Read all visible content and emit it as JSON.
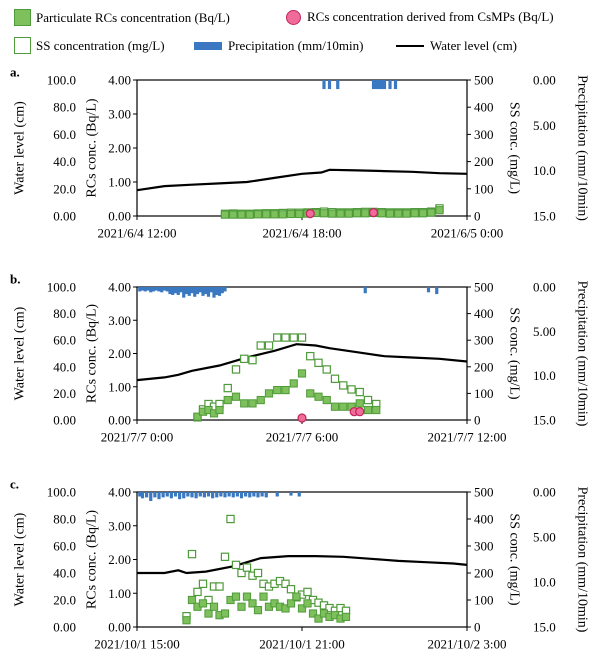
{
  "legend": {
    "particulate": "Particulate RCs concentration (Bq/L)",
    "csmp": "RCs concentration derived from CsMPs (Bq/L)",
    "ss": "SS concentration (mg/L)",
    "precip": "Precipitation (mm/10min)",
    "water": "Water level (cm)"
  },
  "colors": {
    "green_fill": "#7dc05c",
    "green_edge": "#4f9a3a",
    "pink_fill": "#ef6b9a",
    "pink_edge": "#c0245a",
    "blue": "#3a78c2",
    "line": "#000000"
  },
  "chart_data": [
    {
      "type": "scatter",
      "panel": "a.",
      "axis_labels": {
        "water": "Water level (cm)",
        "rcs": "RCs conc. (Bq/L)",
        "ss": "SS conc. (mg/L)",
        "precip": "Precipitation (mm/10min)"
      },
      "water_ticks": [
        "100.0",
        "80.0",
        "60.0",
        "40.0",
        "20.0",
        "0.00"
      ],
      "rcs_ticks": [
        "4.00",
        "3.00",
        "2.00",
        "1.00",
        "0.00"
      ],
      "ss_ticks": [
        "500",
        "400",
        "300",
        "200",
        "100",
        "0"
      ],
      "precip_ticks": [
        "0.00",
        "5.00",
        "10.0",
        "15.0"
      ],
      "x_ticks": [
        {
          "h": 0,
          "label": "2021/6/4 12:00"
        },
        {
          "h": 6,
          "label": "2021/6/4 18:00"
        },
        {
          "h": 12,
          "label": "2021/6/5 0:00"
        }
      ],
      "xlim": [
        0,
        12
      ],
      "water_level": [
        [
          0,
          19
        ],
        [
          1,
          22
        ],
        [
          2,
          23
        ],
        [
          3,
          24
        ],
        [
          4,
          25
        ],
        [
          5,
          28
        ],
        [
          6,
          31
        ],
        [
          6.7,
          32
        ],
        [
          7,
          34
        ],
        [
          8,
          33.5
        ],
        [
          9,
          33
        ],
        [
          10,
          32.5
        ],
        [
          11,
          31.5
        ],
        [
          12,
          31
        ]
      ],
      "particulate": [
        [
          3.2,
          0.04
        ],
        [
          3.5,
          0.04
        ],
        [
          3.8,
          0.04
        ],
        [
          4.1,
          0.04
        ],
        [
          4.4,
          0.05
        ],
        [
          4.7,
          0.05
        ],
        [
          5.0,
          0.05
        ],
        [
          5.3,
          0.05
        ],
        [
          5.6,
          0.06
        ],
        [
          5.9,
          0.06
        ],
        [
          6.2,
          0.07
        ],
        [
          6.5,
          0.09
        ],
        [
          6.8,
          0.08
        ],
        [
          7.1,
          0.07
        ],
        [
          7.4,
          0.07
        ],
        [
          7.7,
          0.07
        ],
        [
          8.0,
          0.08
        ],
        [
          8.3,
          0.08
        ],
        [
          8.6,
          0.09
        ],
        [
          8.9,
          0.08
        ],
        [
          9.2,
          0.07
        ],
        [
          9.5,
          0.07
        ],
        [
          9.8,
          0.07
        ],
        [
          10.1,
          0.08
        ],
        [
          10.4,
          0.08
        ],
        [
          10.7,
          0.1
        ],
        [
          11.0,
          0.17
        ]
      ],
      "ss": [
        [
          3.2,
          8
        ],
        [
          3.5,
          9
        ],
        [
          3.8,
          8
        ],
        [
          4.1,
          8
        ],
        [
          4.4,
          9
        ],
        [
          4.7,
          10
        ],
        [
          5.0,
          10
        ],
        [
          5.3,
          11
        ],
        [
          5.6,
          12
        ],
        [
          5.9,
          12
        ],
        [
          6.2,
          13
        ],
        [
          6.5,
          14
        ],
        [
          6.8,
          16
        ],
        [
          7.1,
          14
        ],
        [
          7.4,
          13
        ],
        [
          7.7,
          13
        ],
        [
          8.0,
          14
        ],
        [
          8.3,
          15
        ],
        [
          8.6,
          15
        ],
        [
          8.9,
          14
        ],
        [
          9.2,
          13
        ],
        [
          9.5,
          13
        ],
        [
          9.8,
          13
        ],
        [
          10.1,
          14
        ],
        [
          10.4,
          14
        ],
        [
          10.7,
          16
        ],
        [
          11.0,
          28
        ]
      ],
      "csmp": [
        [
          6.3,
          0.07
        ],
        [
          8.6,
          0.1
        ]
      ],
      "precip": [
        [
          6.8,
          1.0
        ],
        [
          7.0,
          1.0
        ],
        [
          7.3,
          1.0
        ],
        [
          8.6,
          1.0
        ],
        [
          8.7,
          1.0
        ],
        [
          8.8,
          1.0
        ],
        [
          8.9,
          1.0
        ],
        [
          9.0,
          1.0
        ],
        [
          9.2,
          1.0
        ],
        [
          9.4,
          1.0
        ]
      ]
    },
    {
      "type": "scatter",
      "panel": "b.",
      "axis_labels": {
        "water": "Water level (cm)",
        "rcs": "RCs conc. (Bq/L)",
        "ss": "SS conc. (mg/L)",
        "precip": "Precipitation (mm/10min)"
      },
      "water_ticks": [
        "100.0",
        "80.0",
        "60.0",
        "40.0",
        "20.0",
        "0.00"
      ],
      "rcs_ticks": [
        "4.00",
        "3.00",
        "2.00",
        "1.00",
        "0.00"
      ],
      "ss_ticks": [
        "500",
        "400",
        "300",
        "200",
        "100",
        "0"
      ],
      "precip_ticks": [
        "0.00",
        "5.00",
        "10.0",
        "15.0"
      ],
      "x_ticks": [
        {
          "h": 0,
          "label": "2021/7/7 0:00"
        },
        {
          "h": 6,
          "label": "2021/7/7 6:00"
        },
        {
          "h": 12,
          "label": "2021/7/7 12:00"
        }
      ],
      "xlim": [
        0,
        12
      ],
      "water_level": [
        [
          0,
          30
        ],
        [
          1,
          32
        ],
        [
          1.5,
          34
        ],
        [
          2,
          37
        ],
        [
          3,
          41
        ],
        [
          4,
          47
        ],
        [
          5,
          52
        ],
        [
          5.8,
          57
        ],
        [
          6.5,
          56
        ],
        [
          7,
          54
        ],
        [
          8,
          51
        ],
        [
          9,
          48
        ],
        [
          10,
          47
        ],
        [
          11,
          46
        ],
        [
          12,
          44
        ]
      ],
      "particulate": [
        [
          2.2,
          0.1
        ],
        [
          2.4,
          0.25
        ],
        [
          2.6,
          0.3
        ],
        [
          2.8,
          0.2
        ],
        [
          3.0,
          0.3
        ],
        [
          3.3,
          0.6
        ],
        [
          3.6,
          0.7
        ],
        [
          3.9,
          0.5
        ],
        [
          4.2,
          0.5
        ],
        [
          4.5,
          0.6
        ],
        [
          4.8,
          0.8
        ],
        [
          5.1,
          0.9
        ],
        [
          5.4,
          0.9
        ],
        [
          5.7,
          1.1
        ],
        [
          6.0,
          1.4
        ],
        [
          6.3,
          0.8
        ],
        [
          6.6,
          0.7
        ],
        [
          6.9,
          0.6
        ],
        [
          7.2,
          0.4
        ],
        [
          7.5,
          0.4
        ],
        [
          7.8,
          0.4
        ],
        [
          8.1,
          0.5
        ],
        [
          8.4,
          0.3
        ],
        [
          8.7,
          0.3
        ]
      ],
      "ss": [
        [
          2.2,
          10
        ],
        [
          2.4,
          40
        ],
        [
          2.6,
          60
        ],
        [
          2.8,
          50
        ],
        [
          3.0,
          60
        ],
        [
          3.3,
          120
        ],
        [
          3.6,
          190
        ],
        [
          3.9,
          230
        ],
        [
          4.2,
          225
        ],
        [
          4.5,
          280
        ],
        [
          4.8,
          280
        ],
        [
          5.1,
          310
        ],
        [
          5.4,
          310
        ],
        [
          5.7,
          310
        ],
        [
          6.0,
          310
        ],
        [
          6.3,
          240
        ],
        [
          6.6,
          215
        ],
        [
          6.9,
          190
        ],
        [
          7.2,
          155
        ],
        [
          7.5,
          130
        ],
        [
          7.8,
          115
        ],
        [
          8.1,
          105
        ],
        [
          8.4,
          75
        ],
        [
          8.7,
          60
        ]
      ],
      "csmp": [
        [
          6.0,
          0.06
        ],
        [
          7.9,
          0.25
        ],
        [
          8.1,
          0.25
        ]
      ],
      "precip": [
        [
          0.1,
          0.5
        ],
        [
          0.2,
          0.4
        ],
        [
          0.3,
          0.5
        ],
        [
          0.4,
          0.4
        ],
        [
          0.5,
          0.6
        ],
        [
          0.6,
          0.5
        ],
        [
          0.7,
          0.4
        ],
        [
          0.8,
          0.5
        ],
        [
          0.9,
          0.6
        ],
        [
          1.0,
          0.4
        ],
        [
          1.1,
          0.5
        ],
        [
          1.2,
          0.8
        ],
        [
          1.3,
          0.9
        ],
        [
          1.4,
          0.7
        ],
        [
          1.5,
          0.9
        ],
        [
          1.6,
          0.6
        ],
        [
          1.7,
          1.2
        ],
        [
          1.8,
          0.8
        ],
        [
          1.9,
          1.0
        ],
        [
          2.0,
          0.7
        ],
        [
          2.1,
          1.1
        ],
        [
          2.2,
          0.8
        ],
        [
          2.3,
          0.6
        ],
        [
          2.4,
          1.0
        ],
        [
          2.5,
          0.8
        ],
        [
          2.6,
          1.1
        ],
        [
          2.7,
          0.6
        ],
        [
          2.8,
          1.2
        ],
        [
          2.9,
          0.9
        ],
        [
          3.0,
          1.0
        ],
        [
          3.1,
          0.7
        ],
        [
          3.2,
          0.5
        ],
        [
          8.3,
          0.7
        ],
        [
          10.6,
          0.6
        ],
        [
          10.9,
          0.8
        ]
      ]
    },
    {
      "type": "scatter",
      "panel": "c.",
      "axis_labels": {
        "water": "Water level (cm)",
        "rcs": "RCs conc. (Bq/L)",
        "ss": "SS conc. (mg/L)",
        "precip": "Precipitation (mm/10min)"
      },
      "water_ticks": [
        "100.0",
        "80.0",
        "60.0",
        "40.0",
        "20.0",
        "0.00"
      ],
      "rcs_ticks": [
        "4.00",
        "3.00",
        "2.00",
        "1.00",
        "0.00"
      ],
      "ss_ticks": [
        "500",
        "400",
        "300",
        "200",
        "100",
        "0"
      ],
      "precip_ticks": [
        "0.00",
        "5.00",
        "10.0",
        "15.0"
      ],
      "x_ticks": [
        {
          "h": 0,
          "label": "2021/10/1 15:00"
        },
        {
          "h": 6,
          "label": "2021/10/1 21:00"
        },
        {
          "h": 12,
          "label": "2021/10/2 3:00"
        }
      ],
      "xlim": [
        0,
        12
      ],
      "water_level": [
        [
          0,
          40
        ],
        [
          1,
          40
        ],
        [
          1.5,
          42
        ],
        [
          1.8,
          40
        ],
        [
          2.5,
          41
        ],
        [
          3.5,
          45
        ],
        [
          4.5,
          51
        ],
        [
          5.5,
          52.5
        ],
        [
          6.5,
          52.5
        ],
        [
          7.5,
          52
        ],
        [
          8.5,
          50.5
        ],
        [
          9.5,
          49
        ],
        [
          10.5,
          48
        ],
        [
          11.5,
          47
        ],
        [
          12,
          46
        ]
      ],
      "particulate": [
        [
          1.8,
          0.2
        ],
        [
          2.0,
          0.8
        ],
        [
          2.2,
          0.6
        ],
        [
          2.4,
          0.7
        ],
        [
          2.6,
          0.4
        ],
        [
          2.8,
          0.6
        ],
        [
          3.0,
          0.35
        ],
        [
          3.2,
          0.4
        ],
        [
          3.4,
          0.8
        ],
        [
          3.6,
          0.9
        ],
        [
          3.8,
          0.6
        ],
        [
          4.0,
          0.9
        ],
        [
          4.2,
          0.7
        ],
        [
          4.4,
          0.5
        ],
        [
          4.6,
          0.9
        ],
        [
          4.8,
          0.6
        ],
        [
          5.0,
          0.7
        ],
        [
          5.2,
          0.6
        ],
        [
          5.4,
          0.55
        ],
        [
          5.6,
          0.7
        ],
        [
          5.8,
          0.9
        ],
        [
          6.0,
          0.55
        ],
        [
          6.2,
          0.7
        ],
        [
          6.4,
          0.4
        ],
        [
          6.6,
          0.25
        ],
        [
          6.8,
          0.4
        ],
        [
          7.0,
          0.3
        ],
        [
          7.2,
          0.35
        ],
        [
          7.4,
          0.25
        ],
        [
          7.6,
          0.3
        ]
      ],
      "ss": [
        [
          1.8,
          40
        ],
        [
          2.0,
          270
        ],
        [
          2.2,
          130
        ],
        [
          2.4,
          160
        ],
        [
          2.6,
          100
        ],
        [
          2.8,
          150
        ],
        [
          3.0,
          150
        ],
        [
          3.2,
          260
        ],
        [
          3.4,
          400
        ],
        [
          3.6,
          230
        ],
        [
          3.8,
          200
        ],
        [
          4.0,
          220
        ],
        [
          4.2,
          190
        ],
        [
          4.4,
          200
        ],
        [
          4.6,
          160
        ],
        [
          4.8,
          150
        ],
        [
          5.0,
          160
        ],
        [
          5.2,
          170
        ],
        [
          5.4,
          160
        ],
        [
          5.6,
          140
        ],
        [
          5.8,
          110
        ],
        [
          6.0,
          120
        ],
        [
          6.2,
          130
        ],
        [
          6.4,
          100
        ],
        [
          6.6,
          90
        ],
        [
          6.8,
          80
        ],
        [
          7.0,
          70
        ],
        [
          7.2,
          60
        ],
        [
          7.4,
          70
        ],
        [
          7.6,
          60
        ]
      ],
      "csmp": [],
      "precip": [
        [
          0.1,
          0.5
        ],
        [
          0.2,
          0.7
        ],
        [
          0.35,
          0.6
        ],
        [
          0.5,
          1.0
        ],
        [
          0.65,
          0.6
        ],
        [
          0.8,
          0.8
        ],
        [
          0.95,
          0.6
        ],
        [
          1.1,
          0.5
        ],
        [
          1.25,
          0.7
        ],
        [
          1.4,
          0.5
        ],
        [
          1.55,
          0.8
        ],
        [
          1.7,
          0.7
        ],
        [
          1.85,
          0.5
        ],
        [
          2.0,
          0.6
        ],
        [
          2.15,
          0.7
        ],
        [
          2.3,
          0.5
        ],
        [
          2.45,
          0.6
        ],
        [
          2.6,
          0.5
        ],
        [
          2.75,
          0.7
        ],
        [
          2.9,
          0.6
        ],
        [
          3.05,
          0.5
        ],
        [
          3.2,
          0.6
        ],
        [
          3.35,
          0.5
        ],
        [
          3.5,
          0.6
        ],
        [
          3.65,
          0.5
        ],
        [
          3.8,
          0.7
        ],
        [
          3.95,
          0.5
        ],
        [
          4.1,
          0.6
        ],
        [
          4.25,
          0.5
        ],
        [
          4.4,
          0.6
        ],
        [
          4.55,
          0.5
        ],
        [
          4.7,
          0.6
        ],
        [
          5.1,
          0.5
        ],
        [
          5.6,
          0.4
        ],
        [
          5.9,
          0.5
        ]
      ]
    }
  ]
}
